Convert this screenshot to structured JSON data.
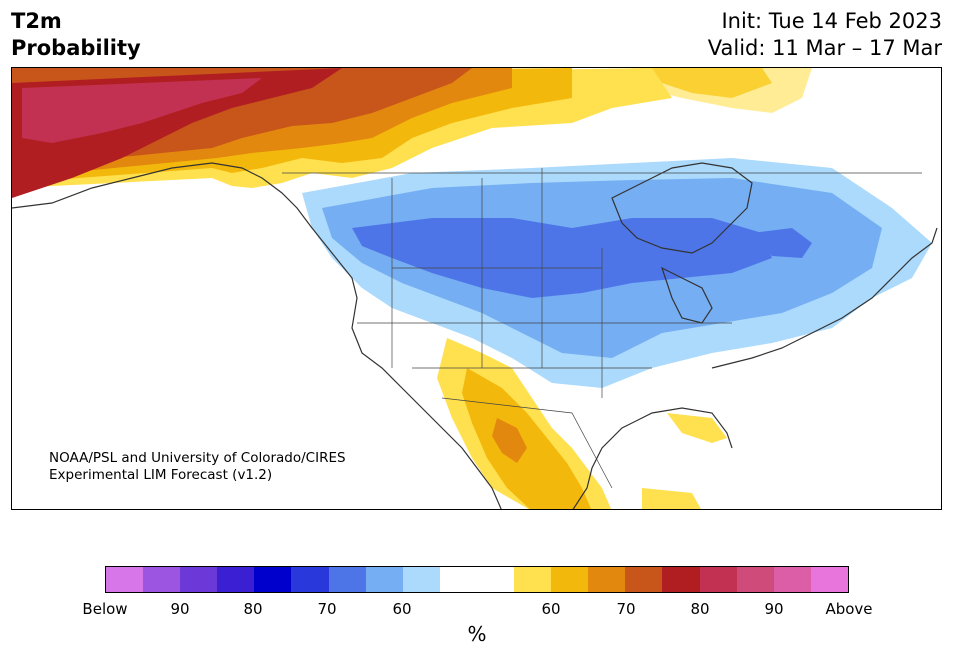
{
  "header": {
    "title_line1": "T2m",
    "title_line2": "Probability",
    "init": "Init: Tue 14 Feb 2023",
    "valid": "Valid: 11 Mar – 17 Mar"
  },
  "credit": {
    "line1": "NOAA/PSL and University of Colorado/CIRES",
    "line2": "Experimental LIM Forecast (v1.2)"
  },
  "colorbar": {
    "colors": [
      "#d676e9",
      "#9b55e0",
      "#6c38d8",
      "#3b1fd2",
      "#0000cd",
      "#2838da",
      "#4e75e8",
      "#75aef2",
      "#abdafc",
      "#ffffff",
      "#ffffff",
      "#ffe04e",
      "#f3b80c",
      "#e2880e",
      "#c85519",
      "#b01e22",
      "#c23152",
      "#cf4b79",
      "#dc5ea6",
      "#e875dc"
    ],
    "ticks": [
      "Below",
      "90",
      "80",
      "70",
      "60",
      "60",
      "70",
      "80",
      "90",
      "Above"
    ],
    "unit": "%"
  },
  "map": {
    "layers": {
      "cold": [
        "#abdafc",
        "#75aef2",
        "#4e75e8"
      ],
      "warm": [
        "#ffe04e",
        "#f3b80c",
        "#e2880e",
        "#c85519",
        "#b01e22",
        "#c23152"
      ]
    }
  }
}
